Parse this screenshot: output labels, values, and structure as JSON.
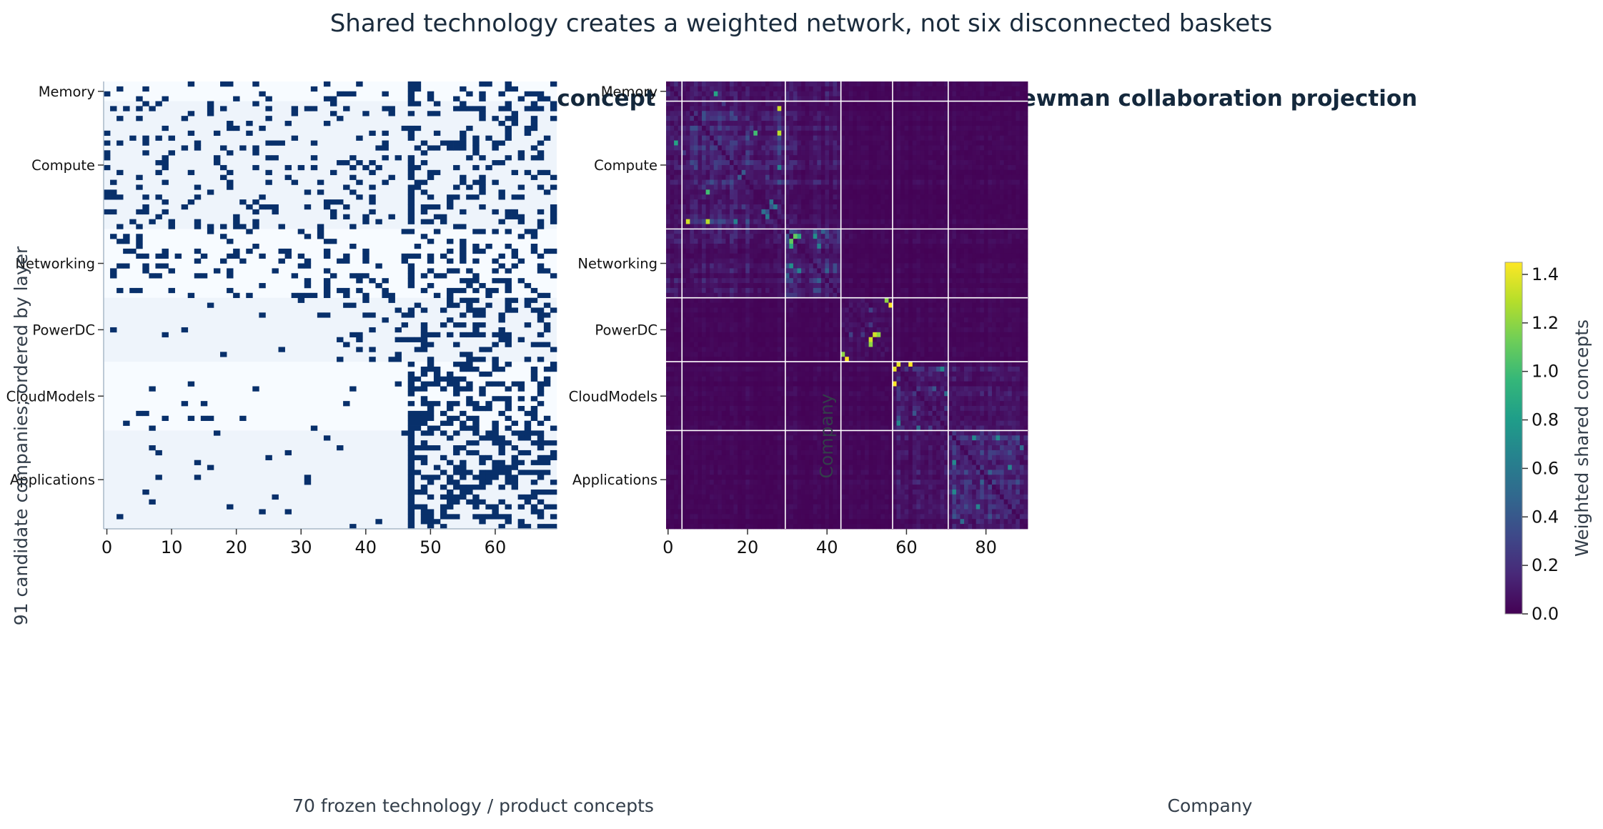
{
  "title": "Shared technology creates a weighted network, not six disconnected baskets",
  "colors": {
    "matrix_on": "#08306b",
    "matrix_bg": "#f7fbff",
    "matrix_bg_alt": "#eef4fb",
    "axis": "#a9b8c8",
    "text": "#1a2b3c",
    "viridis": [
      "#440154",
      "#482878",
      "#3e4989",
      "#31688e",
      "#26828e",
      "#1f9e89",
      "#35b779",
      "#6ece58",
      "#b5de2b",
      "#fde725"
    ]
  },
  "chart_data": [
    {
      "type": "heatmap",
      "title": "Company x technical concept",
      "xlabel": "70 frozen technology / product concepts",
      "ylabel": "91 candidate companies; ordered by layer",
      "n_rows": 91,
      "n_cols": 70,
      "x_ticks": [
        0,
        10,
        20,
        30,
        40,
        50,
        60
      ],
      "layers": [
        {
          "name": "Memory",
          "start": 0,
          "end": 4
        },
        {
          "name": "Compute",
          "start": 4,
          "end": 30
        },
        {
          "name": "Networking",
          "start": 30,
          "end": 44
        },
        {
          "name": "PowerDC",
          "start": 44,
          "end": 57
        },
        {
          "name": "CloudModels",
          "start": 57,
          "end": 71
        },
        {
          "name": "Applications",
          "start": 71,
          "end": 91
        }
      ],
      "values": "binary company x concept membership matrix (approximate pattern)"
    },
    {
      "type": "heatmap",
      "title": "Newman collaboration projection",
      "xlabel": "Company",
      "ylabel": "Company",
      "n_rows": 91,
      "n_cols": 91,
      "x_ticks": [
        0,
        20,
        40,
        60,
        80
      ],
      "colorbar": {
        "label": "Weighted shared concepts",
        "range": [
          0.0,
          1.45
        ],
        "ticks": [
          0.0,
          0.2,
          0.4,
          0.6,
          0.8,
          1.0,
          1.2,
          1.4
        ],
        "cmap": "viridis"
      },
      "block_boundaries": [
        3.5,
        29.5,
        43.5,
        56.5,
        70.5
      ],
      "values": "symmetric company x company weighted shared-concept matrix (approximate pattern)"
    }
  ]
}
